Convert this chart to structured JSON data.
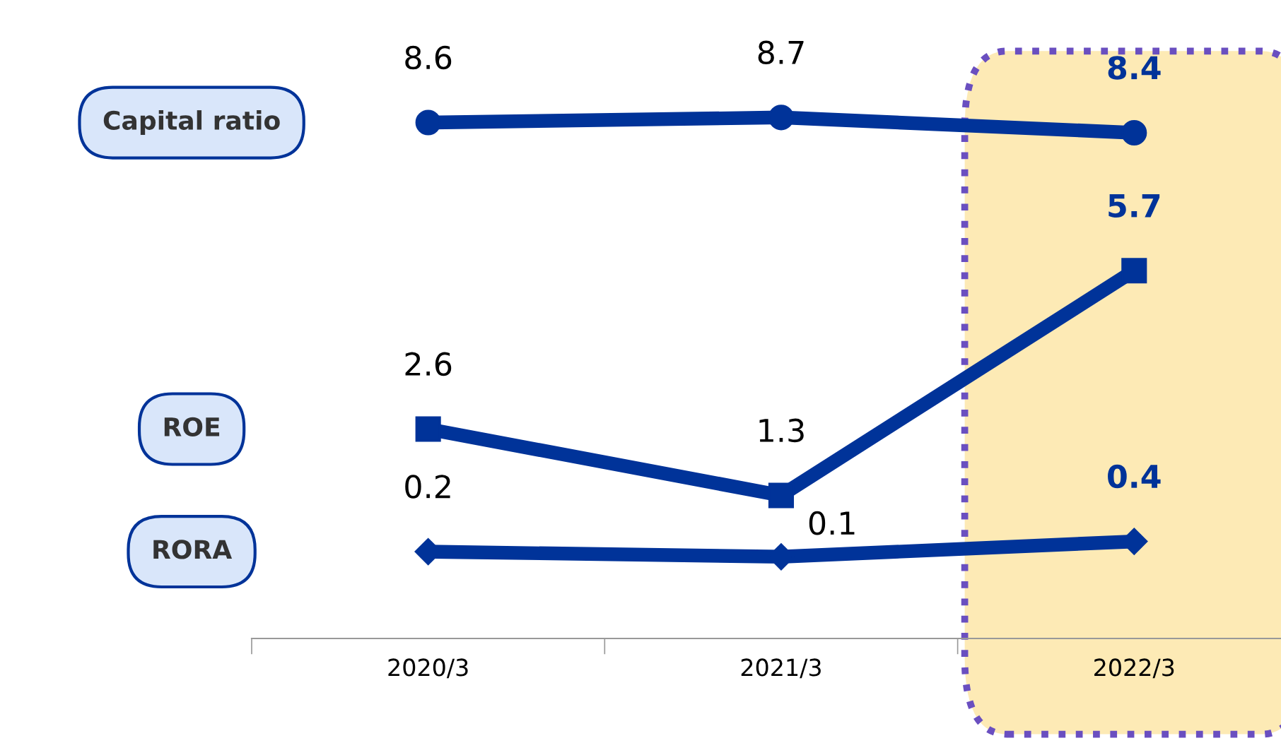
{
  "chart_data": {
    "type": "line",
    "categories": [
      "2020/3",
      "2021/3",
      "2022/3"
    ],
    "series": [
      {
        "name": "Capital ratio",
        "color": "#003399",
        "marker": "circle",
        "values": [
          8.6,
          8.7,
          8.4
        ]
      },
      {
        "name": "ROE",
        "color": "#003399",
        "marker": "square",
        "values": [
          2.6,
          1.3,
          5.7
        ]
      },
      {
        "name": "RORA",
        "color": "#003399",
        "marker": "diamond",
        "values": [
          0.2,
          0.1,
          0.4
        ]
      }
    ],
    "data_labels": true,
    "grid": false,
    "legend": false,
    "bands": [
      {
        "axis": "x",
        "from": "2022/3",
        "to": "2022/3",
        "color": "#fdeab5"
      }
    ]
  }
}
